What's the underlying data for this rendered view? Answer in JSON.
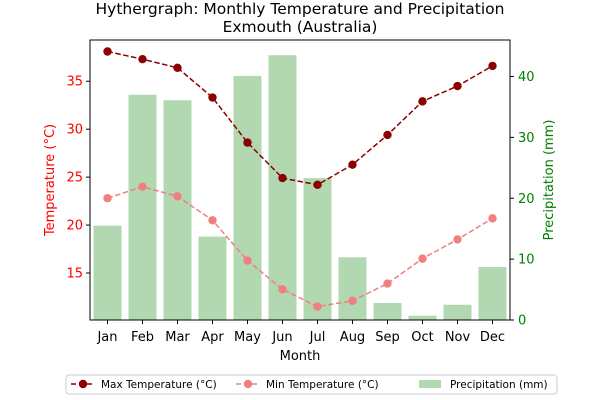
{
  "chart_data": {
    "type": "bar+line",
    "title": "Hythergraph: Monthly Temperature and Precipitation",
    "subtitle": "Exmouth (Australia)",
    "xlabel": "Month",
    "ylabel_left": "Temperature (°C)",
    "ylabel_right": "Precipitation (mm)",
    "ylim_left": [
      10.1,
      39.3
    ],
    "ylim_right": [
      0,
      46
    ],
    "yticks_left": [
      "15",
      "20",
      "25",
      "30",
      "35"
    ],
    "yticks_right": [
      "0",
      "10",
      "20",
      "30",
      "40"
    ],
    "categories": [
      "Jan",
      "Feb",
      "Mar",
      "Apr",
      "May",
      "Jun",
      "Jul",
      "Aug",
      "Sep",
      "Oct",
      "Nov",
      "Dec"
    ],
    "series": [
      {
        "name": "Max Temperature (°C)",
        "kind": "line",
        "axis": "left",
        "color": "#8b0000",
        "linestyle": "dashed",
        "values": [
          38.1,
          37.3,
          36.4,
          33.3,
          28.6,
          24.9,
          24.2,
          26.3,
          29.4,
          32.9,
          34.5,
          36.6
        ]
      },
      {
        "name": "Min Temperature (°C)",
        "kind": "line",
        "axis": "left",
        "color": "#f08080",
        "linestyle": "dashed",
        "values": [
          22.8,
          24.0,
          23.0,
          20.5,
          16.3,
          13.3,
          11.5,
          12.1,
          13.9,
          16.5,
          18.5,
          20.7
        ]
      },
      {
        "name": "Precipitation (mm)",
        "kind": "bar",
        "axis": "right",
        "color": "#b1d8b1",
        "values": [
          15.5,
          37.0,
          36.1,
          13.7,
          40.1,
          43.5,
          23.3,
          10.3,
          2.8,
          0.7,
          2.5,
          8.7
        ]
      }
    ],
    "legend": {
      "placement": "bottom-center",
      "entries": [
        "Max Temperature (°C)",
        "Min Temperature (°C)",
        "Precipitation (mm)"
      ]
    },
    "grid": false
  }
}
